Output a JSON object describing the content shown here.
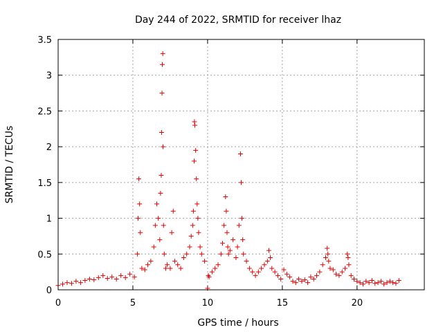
{
  "chart_data": {
    "type": "scatter",
    "title": "Day 244 of 2022, SRMTID for receiver lhaz",
    "xlabel": "GPS time / hours",
    "ylabel": "SRMTID / TECUs",
    "xlim": [
      0,
      24.5
    ],
    "ylim": [
      0,
      3.5
    ],
    "xticks": [
      0,
      5,
      10,
      15,
      20
    ],
    "xtick_labels": [
      "0",
      "5",
      "10",
      "15",
      "20"
    ],
    "yticks": [
      0,
      0.5,
      1,
      1.5,
      2,
      2.5,
      3,
      3.5
    ],
    "ytick_labels": [
      "0",
      "0.5",
      "1",
      "1.5",
      "2",
      "2.5",
      "3",
      "3.5"
    ],
    "grid": true,
    "marker": "+",
    "color": "#e00000",
    "series": [
      {
        "name": "SRMTID",
        "x": [
          0.0,
          0.3,
          0.6,
          0.9,
          1.2,
          1.5,
          1.8,
          2.1,
          2.4,
          2.7,
          3.0,
          3.3,
          3.6,
          3.9,
          4.2,
          4.5,
          4.8,
          5.1,
          5.3,
          5.35,
          5.4,
          5.45,
          5.5,
          5.6,
          5.8,
          6.0,
          6.2,
          6.4,
          6.5,
          6.6,
          6.7,
          6.8,
          6.85,
          6.9,
          6.92,
          6.95,
          6.97,
          7.0,
          7.02,
          7.05,
          7.1,
          7.2,
          7.3,
          7.5,
          7.6,
          7.7,
          7.8,
          8.0,
          8.2,
          8.4,
          8.6,
          8.8,
          8.9,
          9.0,
          9.05,
          9.1,
          9.12,
          9.15,
          9.2,
          9.25,
          9.3,
          9.35,
          9.4,
          9.5,
          9.6,
          9.8,
          10.0,
          10.05,
          10.1,
          10.3,
          10.5,
          10.7,
          10.9,
          11.0,
          11.1,
          11.2,
          11.25,
          11.3,
          11.35,
          11.4,
          11.5,
          11.7,
          11.9,
          12.0,
          12.1,
          12.2,
          12.25,
          12.3,
          12.35,
          12.4,
          12.6,
          12.8,
          13.0,
          13.2,
          13.4,
          13.6,
          13.8,
          14.0,
          14.1,
          14.2,
          14.3,
          14.5,
          14.7,
          14.9,
          15.1,
          15.3,
          15.5,
          15.7,
          15.9,
          16.1,
          16.3,
          16.5,
          16.7,
          16.9,
          17.1,
          17.3,
          17.5,
          17.7,
          17.9,
          18.0,
          18.05,
          18.1,
          18.2,
          18.4,
          18.6,
          18.8,
          19.0,
          19.2,
          19.35,
          19.4,
          19.45,
          19.6,
          19.8,
          20.0,
          20.2,
          20.4,
          20.6,
          20.8,
          21.0,
          21.2,
          21.4,
          21.6,
          21.8,
          22.0,
          22.2,
          22.4,
          22.6,
          22.8
        ],
        "y": [
          0.06,
          0.08,
          0.1,
          0.09,
          0.12,
          0.1,
          0.13,
          0.15,
          0.14,
          0.17,
          0.2,
          0.16,
          0.18,
          0.15,
          0.2,
          0.17,
          0.22,
          0.18,
          0.5,
          1.0,
          1.55,
          1.2,
          0.8,
          0.3,
          0.28,
          0.35,
          0.4,
          0.6,
          0.9,
          1.2,
          1.0,
          0.7,
          1.35,
          1.6,
          2.2,
          2.75,
          3.15,
          3.3,
          2.0,
          0.9,
          0.5,
          0.3,
          0.35,
          0.3,
          0.8,
          1.1,
          0.4,
          0.35,
          0.3,
          0.45,
          0.5,
          0.6,
          0.75,
          0.9,
          1.1,
          1.8,
          2.35,
          2.3,
          1.95,
          1.55,
          1.2,
          1.0,
          0.8,
          0.6,
          0.5,
          0.4,
          0.02,
          0.2,
          0.18,
          0.25,
          0.3,
          0.35,
          0.5,
          0.65,
          0.9,
          1.3,
          1.1,
          0.8,
          0.6,
          0.5,
          0.55,
          0.7,
          0.45,
          0.6,
          0.9,
          1.9,
          1.5,
          1.0,
          0.7,
          0.5,
          0.4,
          0.3,
          0.25,
          0.2,
          0.25,
          0.3,
          0.35,
          0.4,
          0.55,
          0.45,
          0.3,
          0.25,
          0.2,
          0.15,
          0.28,
          0.22,
          0.18,
          0.12,
          0.1,
          0.15,
          0.12,
          0.14,
          0.1,
          0.18,
          0.15,
          0.2,
          0.25,
          0.35,
          0.45,
          0.58,
          0.5,
          0.4,
          0.3,
          0.28,
          0.22,
          0.2,
          0.25,
          0.3,
          0.5,
          0.45,
          0.35,
          0.2,
          0.15,
          0.12,
          0.1,
          0.08,
          0.12,
          0.1,
          0.13,
          0.09,
          0.1,
          0.12,
          0.08,
          0.1,
          0.12,
          0.1,
          0.09,
          0.13
        ]
      }
    ]
  }
}
